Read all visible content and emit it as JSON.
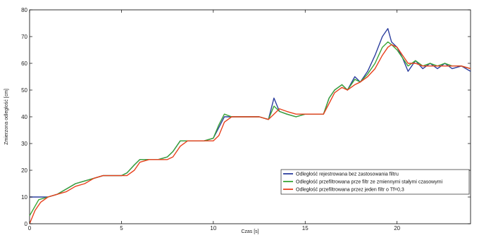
{
  "chart_data": {
    "type": "line",
    "xlabel": "Czas [s]",
    "ylabel": "Zmierzona odległość [cm]",
    "xlim": [
      0,
      24
    ],
    "ylim": [
      0,
      80
    ],
    "xticks": [
      0,
      5,
      10,
      15,
      20
    ],
    "yticks": [
      0,
      10,
      20,
      30,
      40,
      50,
      60,
      70,
      80
    ],
    "grid": false,
    "legend_position": "lower-right",
    "series": [
      {
        "name": "Odległość rejestrowana bez zastosowania filtru",
        "color": "#2c3e9e",
        "x": [
          0,
          0.5,
          1.0,
          1.5,
          2.0,
          2.5,
          3.0,
          3.5,
          4.0,
          4.5,
          5.0,
          5.3,
          5.7,
          6.0,
          6.5,
          7.0,
          7.5,
          7.8,
          8.2,
          8.6,
          9.0,
          9.5,
          10.0,
          10.3,
          10.6,
          11.0,
          11.5,
          12.0,
          12.5,
          13.0,
          13.3,
          13.6,
          14.0,
          14.5,
          15.0,
          15.5,
          16.0,
          16.3,
          16.6,
          17.0,
          17.3,
          17.7,
          18.0,
          18.4,
          18.8,
          19.2,
          19.5,
          19.7,
          20.0,
          20.3,
          20.6,
          21.0,
          21.4,
          21.8,
          22.2,
          22.6,
          23.0,
          23.5,
          24.0
        ],
        "y": [
          10,
          10,
          10,
          11,
          13,
          15,
          16,
          17,
          18,
          18,
          18,
          19,
          22,
          24,
          24,
          24,
          25,
          27,
          31,
          31,
          31,
          31,
          32,
          36,
          40,
          40,
          40,
          40,
          40,
          39,
          47,
          42,
          41,
          40,
          41,
          41,
          41,
          47,
          50,
          52,
          50,
          55,
          53,
          57,
          63,
          70,
          73,
          68,
          66,
          62,
          57,
          61,
          58,
          60,
          58,
          60,
          58,
          59,
          57
        ]
      },
      {
        "name": "Odległość przefiltrowana prze filtr ze zmiennymi stałymi czasowymi",
        "color": "#3aa537",
        "x": [
          0,
          0.5,
          1.0,
          1.5,
          2.0,
          2.5,
          3.0,
          3.5,
          4.0,
          4.5,
          5.0,
          5.3,
          5.7,
          6.0,
          6.5,
          7.0,
          7.5,
          7.8,
          8.2,
          8.6,
          9.0,
          9.5,
          10.0,
          10.3,
          10.6,
          11.0,
          11.5,
          12.0,
          12.5,
          13.0,
          13.3,
          13.6,
          14.0,
          14.5,
          15.0,
          15.5,
          16.0,
          16.3,
          16.6,
          17.0,
          17.3,
          17.7,
          18.0,
          18.4,
          18.8,
          19.2,
          19.5,
          19.7,
          20.0,
          20.3,
          20.6,
          21.0,
          21.4,
          21.8,
          22.2,
          22.6,
          23.0,
          23.5,
          24.0
        ],
        "y": [
          3,
          9,
          10,
          11,
          13,
          15,
          16,
          17,
          18,
          18,
          18,
          19,
          22,
          24,
          24,
          24,
          25,
          27,
          31,
          31,
          31,
          31,
          32,
          37,
          41,
          40,
          40,
          40,
          40,
          39,
          44,
          42,
          41,
          40,
          41,
          41,
          41,
          47,
          50,
          52,
          50,
          54,
          53,
          56,
          60,
          66,
          68,
          67,
          65,
          62,
          59,
          61,
          59,
          60,
          59,
          60,
          59,
          59,
          58
        ]
      },
      {
        "name": "Odległość przefiltrowana przez jeden filtr o Tf=0,3",
        "color": "#e8401c",
        "x": [
          0,
          0.3,
          0.6,
          1.0,
          1.5,
          2.0,
          2.5,
          3.0,
          3.5,
          4.0,
          4.5,
          5.0,
          5.3,
          5.7,
          6.0,
          6.5,
          7.0,
          7.5,
          7.8,
          8.2,
          8.6,
          9.0,
          9.5,
          10.0,
          10.3,
          10.6,
          11.0,
          11.5,
          12.0,
          12.5,
          13.0,
          13.3,
          13.6,
          14.0,
          14.5,
          15.0,
          15.5,
          16.0,
          16.3,
          16.6,
          17.0,
          17.3,
          17.7,
          18.0,
          18.4,
          18.8,
          19.2,
          19.5,
          19.7,
          20.0,
          20.3,
          20.6,
          21.0,
          21.4,
          21.8,
          22.2,
          22.6,
          23.0,
          23.5,
          24.0
        ],
        "y": [
          0,
          5,
          8,
          10,
          11,
          12,
          14,
          15,
          17,
          18,
          18,
          18,
          18,
          20,
          23,
          24,
          24,
          24,
          25,
          29,
          31,
          31,
          31,
          31,
          33,
          38,
          40,
          40,
          40,
          40,
          39,
          41,
          43,
          42,
          41,
          41,
          41,
          41,
          45,
          49,
          51,
          50,
          52,
          53,
          55,
          58,
          63,
          66,
          67,
          66,
          63,
          60,
          60,
          59,
          59,
          59,
          59,
          59,
          59,
          58
        ]
      }
    ]
  }
}
